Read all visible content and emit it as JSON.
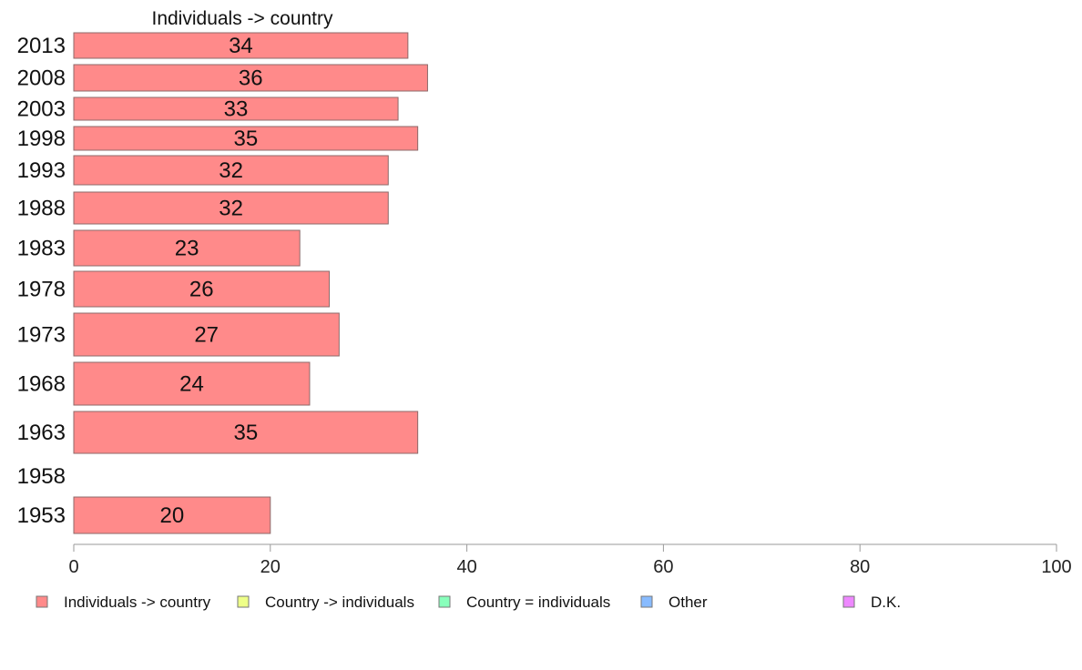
{
  "chart_data": {
    "type": "bar",
    "orientation": "horizontal",
    "title": "Individuals -> country",
    "categories": [
      "2013",
      "2008",
      "2003",
      "1998",
      "1993",
      "1988",
      "1983",
      "1978",
      "1973",
      "1968",
      "1963",
      "1958",
      "1953"
    ],
    "series": [
      {
        "name": "Individuals -> country",
        "color": "#ff8a8a",
        "values": [
          34,
          36,
          33,
          35,
          32,
          32,
          23,
          26,
          27,
          24,
          35,
          null,
          20
        ],
        "labels": [
          "34",
          "36",
          "33",
          "35",
          "32",
          "32",
          "23",
          "26",
          "27",
          "24",
          "35",
          "",
          "20"
        ]
      }
    ],
    "xlim": [
      0,
      100
    ],
    "xticks": [
      "0",
      "20",
      "40",
      "60",
      "80",
      "100"
    ],
    "grid": false,
    "legend": {
      "position": "bottom",
      "items": [
        {
          "label": "Individuals -> country",
          "color": "#ff8a8a"
        },
        {
          "label": "Country -> individuals",
          "color": "#eeff88"
        },
        {
          "label": "Country = individuals",
          "color": "#88ffbb"
        },
        {
          "label": "Other",
          "color": "#88bbff"
        },
        {
          "label": "D.K.",
          "color": "#ee88ff"
        }
      ]
    }
  }
}
